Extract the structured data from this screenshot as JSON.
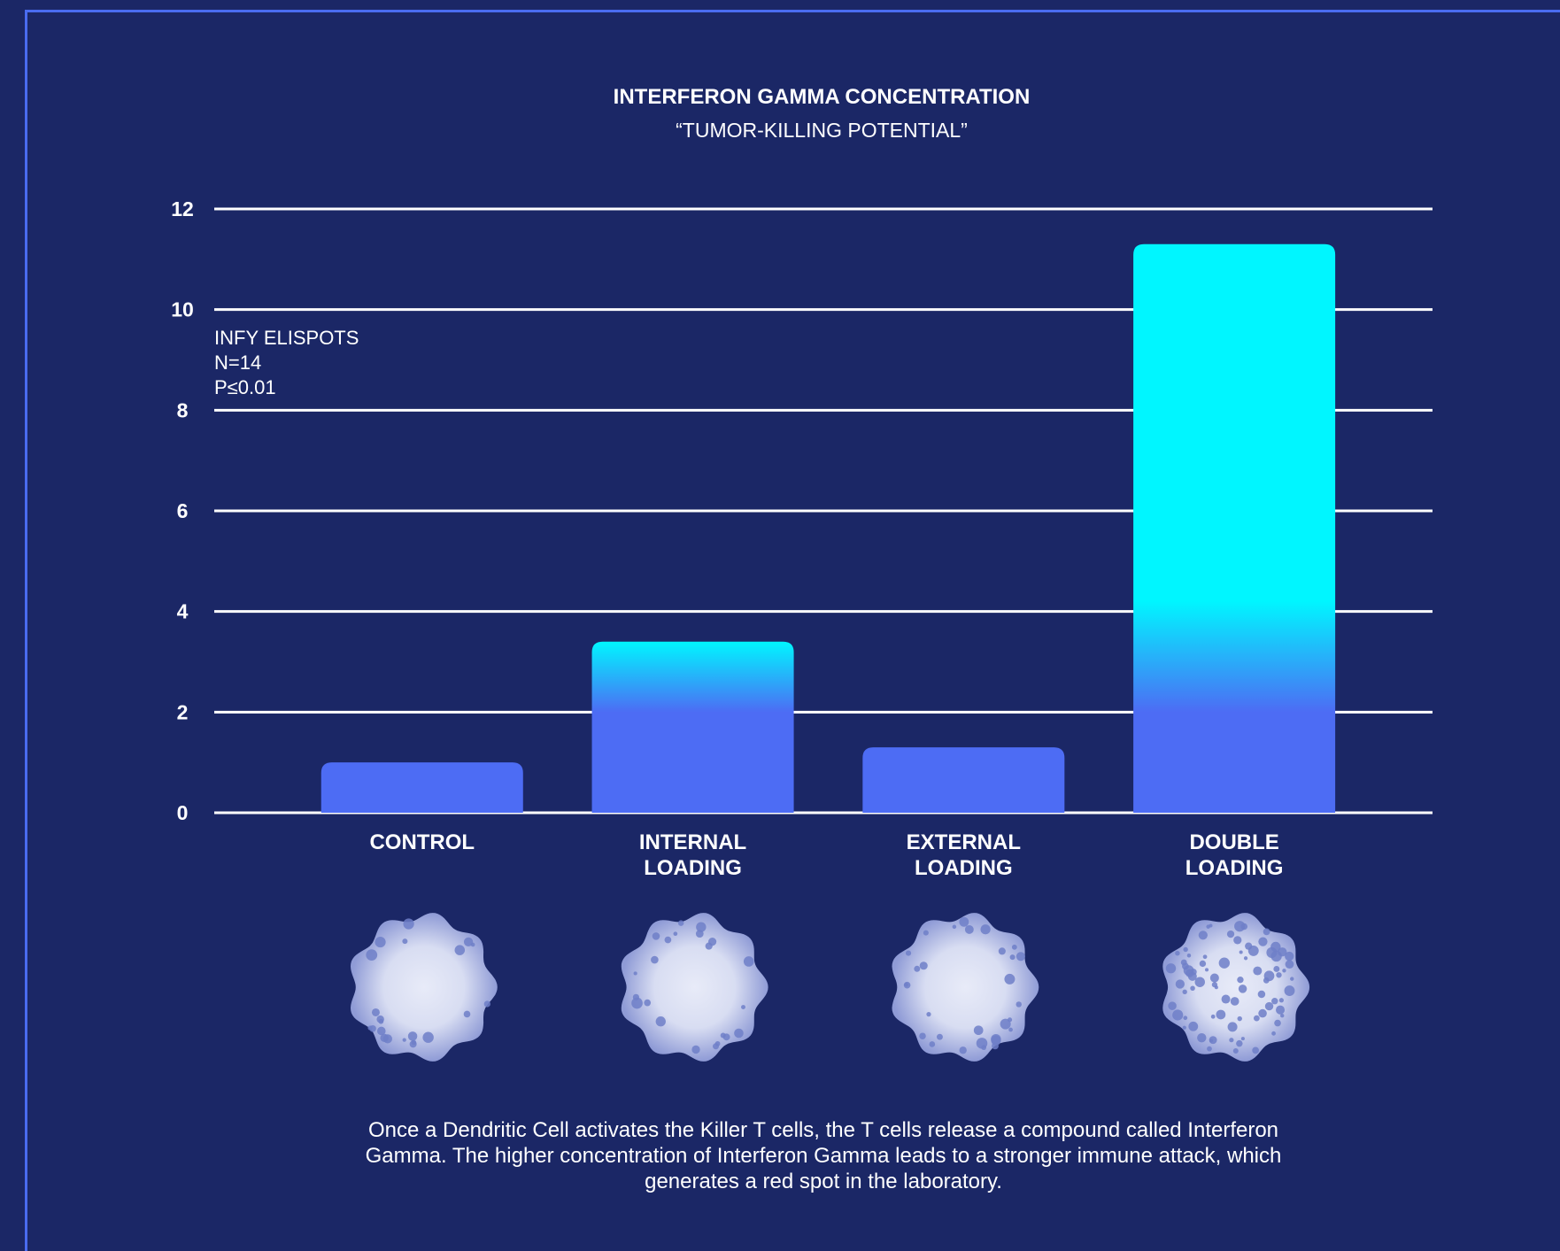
{
  "colors": {
    "background": "#1b2766",
    "frame": "#4a6cf0",
    "bar_base": "#4d6cf4",
    "bar_top": "#00f6ff",
    "grid": "#ffffff",
    "cell_dot": "#6f7fc8"
  },
  "chart_data": {
    "type": "bar",
    "title": "INTERFERON GAMMA CONCENTRATION",
    "subtitle": "“TUMOR-KILLING POTENTIAL”",
    "categories": [
      [
        "CONTROL"
      ],
      [
        "INTERNAL",
        "LOADING"
      ],
      [
        "EXTERNAL",
        "LOADING"
      ],
      [
        "DOUBLE",
        "LOADING"
      ]
    ],
    "values": [
      1.0,
      3.4,
      1.3,
      11.3
    ],
    "ylim": [
      0,
      12
    ],
    "yticks": [
      0,
      2,
      4,
      6,
      8,
      10,
      12
    ],
    "grid": true,
    "annotation": [
      "INFY ELISPOTS",
      "N=14",
      "P≤0.01"
    ],
    "spot_images": [
      "few-spots-icon",
      "few-spots-icon",
      "some-spots-icon",
      "many-spots-icon"
    ]
  },
  "caption": "Once a Dendritic Cell activates the Killer T cells, the T cells release a compound called Interferon Gamma. The higher concentration of Interferon Gamma leads to a stronger immune attack, which generates a red spot in the laboratory."
}
